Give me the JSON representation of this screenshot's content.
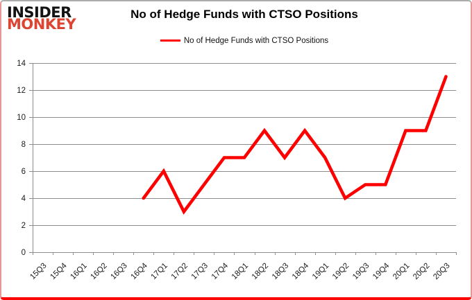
{
  "logo": {
    "top": "INSIDER",
    "bottom": "MONKEY"
  },
  "header": {
    "title": "No of Hedge Funds with CTSO Positions"
  },
  "legend": {
    "label": "No of Hedge Funds with CTSO Positions"
  },
  "colors": {
    "series": "#ff0000",
    "grid": "#8c8c8c",
    "axis": "#8c8c8c",
    "tick_text": "#1a1a1a",
    "logo_primary": "#131313",
    "logo_accent": "#dc4531"
  },
  "chart_data": {
    "type": "line",
    "title": "No of Hedge Funds with CTSO Positions",
    "categories": [
      "15Q3",
      "15Q4",
      "16Q1",
      "16Q2",
      "16Q3",
      "16Q4",
      "17Q1",
      "17Q2",
      "17Q3",
      "17Q4",
      "18Q1",
      "18Q2",
      "18Q3",
      "18Q4",
      "19Q1",
      "19Q2",
      "19Q3",
      "19Q4",
      "20Q1",
      "20Q2",
      "20Q3"
    ],
    "series": [
      {
        "name": "No of Hedge Funds with CTSO Positions",
        "color": "#ff0000",
        "values": [
          null,
          null,
          null,
          null,
          null,
          4,
          6,
          3,
          5,
          7,
          7,
          9,
          7,
          9,
          7,
          4,
          5,
          5,
          9,
          9,
          13
        ]
      }
    ],
    "xlabel": "",
    "ylabel": "",
    "ylim": [
      0,
      14
    ],
    "ytick_step": 2,
    "grid": true,
    "legend_position": "top-center"
  }
}
